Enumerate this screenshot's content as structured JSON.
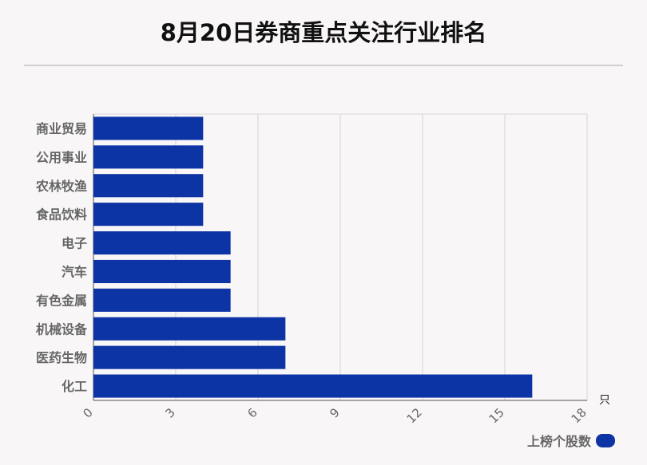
{
  "chart_data": {
    "type": "bar",
    "orientation": "horizontal",
    "title": "8月20日券商重点关注行业排名",
    "categories": [
      "商业贸易",
      "公用事业",
      "农林牧渔",
      "食品饮料",
      "电子",
      "汽车",
      "有色金属",
      "机械设备",
      "医药生物",
      "化工"
    ],
    "series": [
      {
        "name": "上榜个股数",
        "values": [
          4,
          4,
          4,
          4,
          5,
          5,
          5,
          7,
          7,
          16
        ],
        "color": "#0c34a4"
      }
    ],
    "xlim": [
      0,
      18
    ],
    "xticks": [
      0,
      3,
      6,
      9,
      12,
      15,
      18
    ],
    "xunit": "只",
    "grid": true,
    "legend_position": "bottom-right"
  }
}
